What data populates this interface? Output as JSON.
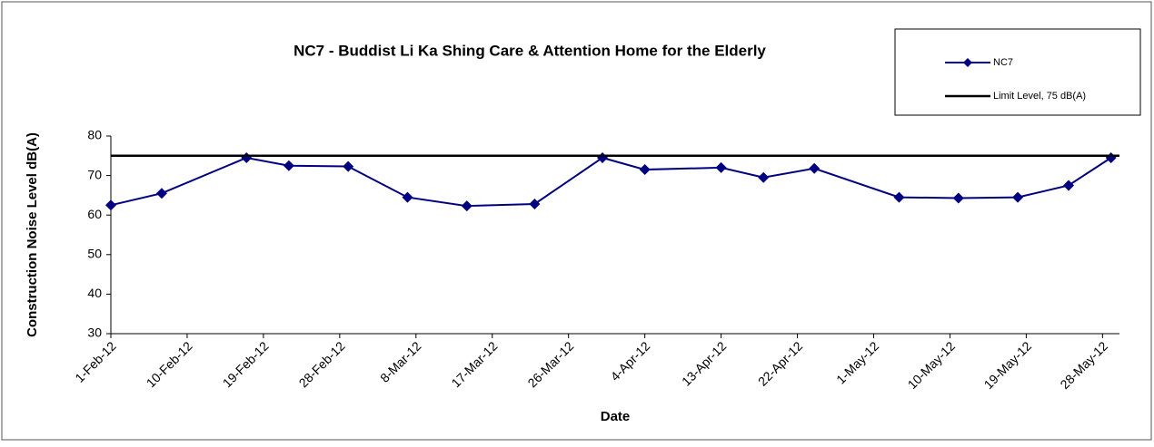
{
  "chart_data": {
    "type": "line",
    "title": "NC7 - Buddist Li Ka Shing Care & Attention Home for  the Elderly",
    "x_label": "Date",
    "y_label": "Construction Noise Level  dB(A)",
    "x": [
      "2012-02-01",
      "2012-02-07",
      "2012-02-17",
      "2012-02-22",
      "2012-02-29",
      "2012-03-07",
      "2012-03-14",
      "2012-03-22",
      "2012-03-30",
      "2012-04-04",
      "2012-04-13",
      "2012-04-18",
      "2012-04-24",
      "2012-05-04",
      "2012-05-11",
      "2012-05-18",
      "2012-05-24",
      "2012-05-29"
    ],
    "series": [
      {
        "name": "NC7",
        "color": "#000080",
        "values": [
          62.5,
          65.5,
          74.5,
          72.5,
          72.3,
          64.5,
          62.3,
          62.8,
          74.5,
          71.5,
          72,
          69.5,
          71.8,
          64.5,
          64.3,
          64.5,
          67.5,
          74.5
        ]
      }
    ],
    "reference_lines": [
      {
        "name": "Limit Level, 75 dB(A)",
        "color": "#000000",
        "value": 75
      }
    ],
    "xlim": [
      "2012-02-01",
      "2012-05-30"
    ],
    "xticks": [
      {
        "value": "2012-02-01",
        "label": "1-Feb-12"
      },
      {
        "value": "2012-02-10",
        "label": "10-Feb-12"
      },
      {
        "value": "2012-02-19",
        "label": "19-Feb-12"
      },
      {
        "value": "2012-02-28",
        "label": "28-Feb-12"
      },
      {
        "value": "2012-03-08",
        "label": "8-Mar-12"
      },
      {
        "value": "2012-03-17",
        "label": "17-Mar-12"
      },
      {
        "value": "2012-03-26",
        "label": "26-Mar-12"
      },
      {
        "value": "2012-04-04",
        "label": "4-Apr-12"
      },
      {
        "value": "2012-04-13",
        "label": "13-Apr-12"
      },
      {
        "value": "2012-04-22",
        "label": "22-Apr-12"
      },
      {
        "value": "2012-05-01",
        "label": "1-May-12"
      },
      {
        "value": "2012-05-10",
        "label": "10-May-12"
      },
      {
        "value": "2012-05-19",
        "label": "19-May-12"
      },
      {
        "value": "2012-05-28",
        "label": "28-May-12"
      }
    ],
    "ylim": [
      30,
      80
    ],
    "yticks": [
      30,
      40,
      50,
      60,
      70,
      80
    ],
    "legend": "upper right"
  }
}
